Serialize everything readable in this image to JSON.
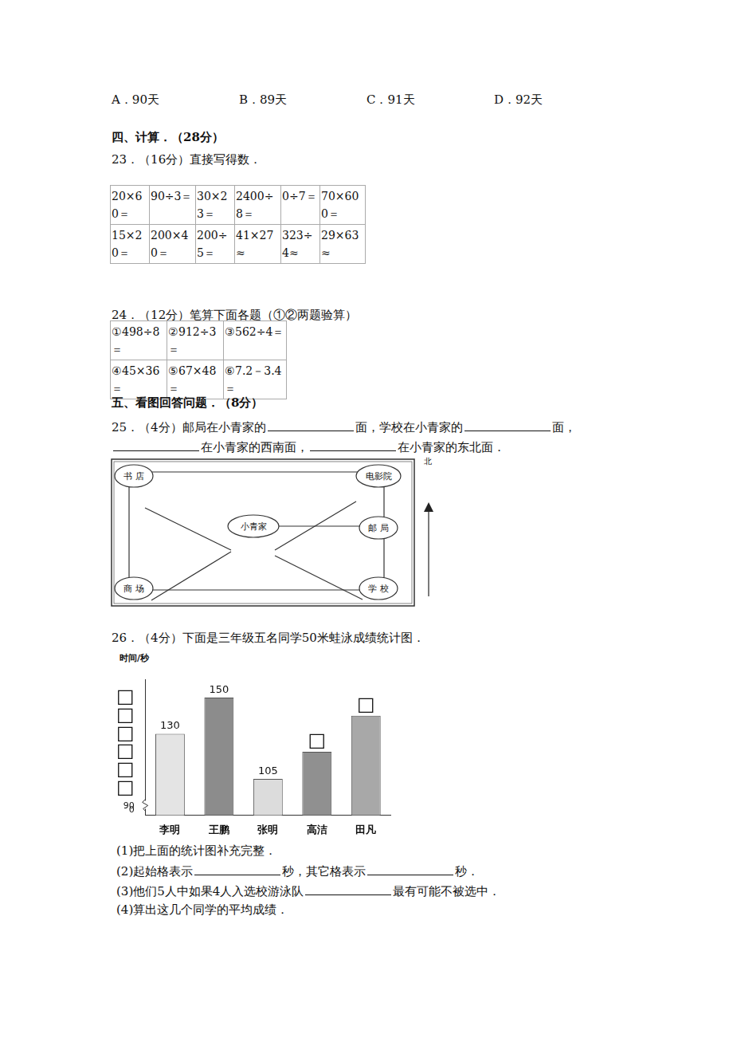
{
  "options": [
    "A．90天",
    "B．89天",
    "C．91天",
    "D．92天"
  ],
  "section4": {
    "title": "四、计算．（28分）",
    "q23": {
      "title": "23．（16分）直接写得数．",
      "rows": [
        [
          "20×60＝",
          "90÷3＝",
          "30×23＝",
          "2400÷8＝",
          "0÷7＝",
          "70×600＝"
        ],
        [
          "15×20＝",
          "200×40＝",
          "200÷5＝",
          "41×27≈",
          "323÷4≈",
          "29×63≈"
        ]
      ]
    },
    "q24": {
      "title": "24．（12分）笔算下面各题（①②两题验算）",
      "rows": [
        [
          "①498÷8＝",
          "②912÷3＝",
          "③562÷4＝"
        ],
        [
          "④45×36＝",
          "⑤67×48＝",
          "⑥7.2－3.4＝"
        ]
      ]
    }
  },
  "section5": {
    "title": "五、看图回答问题．（8分）",
    "q25": {
      "lines": [
        [
          "25．（4分）邮局在小青家的",
          {
            "blank": true
          },
          "面，学校在小青家的",
          {
            "blank": true
          },
          "面，"
        ],
        [
          {
            "blank": true
          },
          "在小青家的西南面，",
          {
            "blank": true
          },
          "在小青家的东北面．"
        ]
      ],
      "map": {
        "places": [
          "书 店",
          "电影院",
          "小青家",
          "邮 局",
          "商 场",
          "学 校"
        ],
        "north": "北"
      }
    },
    "q26": {
      "title": "26．（4分）下面是三年级五名同学50米蛙泳成绩统计图．",
      "questions": [
        [
          "(1)把上面的统计图补充完整．"
        ],
        [
          "(2)起始格表示",
          {
            "blank": true
          },
          "秒，其它格表示",
          {
            "blank": true
          },
          "秒．"
        ],
        [
          "(3)他们5人中如果4人入选校游泳队",
          {
            "blank": true
          },
          "最有可能不被选中．"
        ],
        [
          "(4)算出这几个同学的平均成绩．"
        ]
      ]
    }
  },
  "chart_data": {
    "type": "bar",
    "y_label": "时间/秒",
    "y_break_label": "0",
    "categories": [
      "李明",
      "王鹏",
      "张明",
      "高洁",
      "田凡"
    ],
    "values": [
      130,
      150,
      105,
      120,
      140
    ],
    "value_labels": [
      "130",
      "150",
      "105",
      "□",
      "□"
    ],
    "data_labels": true,
    "colors": [
      "#e4e4e4",
      "#8c8c8c",
      "#dcdcdc",
      "#909090",
      "#a8a8a8"
    ],
    "ylim": [
      85,
      160
    ],
    "yticks": [
      90,
      {
        "value": 100,
        "label": "□"
      },
      {
        "value": 110,
        "label": "□"
      },
      {
        "value": 120,
        "label": "□"
      },
      {
        "value": 130,
        "label": "□"
      },
      {
        "value": 140,
        "label": "□"
      },
      {
        "value": 150,
        "label": "□"
      }
    ],
    "grid": false
  }
}
